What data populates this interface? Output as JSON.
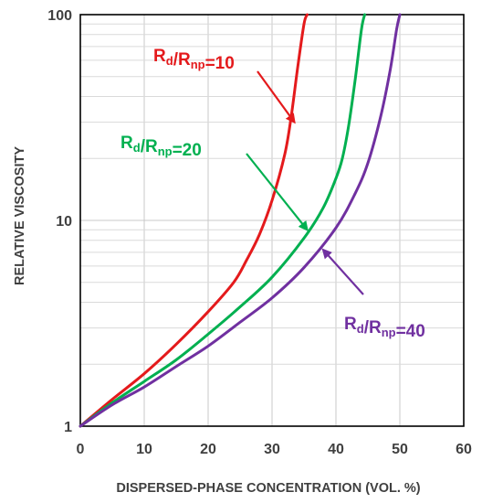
{
  "chart_data": {
    "type": "line",
    "title": "",
    "xlabel": "DISPERSED-PHASE  CONCENTRATION (VOL. %)",
    "ylabel": "RELATIVE VISCOSITY",
    "xlim": [
      0,
      60
    ],
    "ylim": [
      1,
      100
    ],
    "yscale": "log",
    "grid": {
      "x": "major",
      "y": "major+minor"
    },
    "x_ticks": [
      0,
      10,
      20,
      30,
      40,
      50,
      60
    ],
    "x_tick_labels": [
      "0",
      "10",
      "20",
      "30",
      "40",
      "50",
      "60"
    ],
    "y_ticks": [
      1,
      10,
      100
    ],
    "y_tick_labels": [
      "1",
      "10",
      "100"
    ],
    "series": [
      {
        "name": "Rd/Rnp=10",
        "label_main": "R",
        "label_sub1": "d",
        "label_mid": "/R",
        "label_sub2": "np",
        "label_tail": "=10",
        "color": "#e41a1c",
        "label_pos": "upper-left",
        "arrow_to": [
          33.5,
          30
        ],
        "x": [
          0,
          5,
          10,
          15,
          20,
          24,
          26,
          28,
          30,
          32,
          33,
          34,
          35,
          35.5
        ],
        "y": [
          1,
          1.35,
          1.8,
          2.5,
          3.6,
          5.0,
          6.4,
          8.5,
          12.5,
          21,
          32,
          55,
          90,
          100
        ]
      },
      {
        "name": "Rd/Rnp=20",
        "label_main": "R",
        "label_sub1": "d",
        "label_mid": "/R",
        "label_sub2": "np",
        "label_tail": "=20",
        "color": "#00b050",
        "label_pos": "middle-left",
        "arrow_to": [
          35.5,
          9
        ],
        "x": [
          0,
          5,
          10,
          15,
          20,
          25,
          30,
          35,
          38,
          40,
          41,
          42,
          43,
          44,
          44.5
        ],
        "y": [
          1,
          1.3,
          1.65,
          2.1,
          2.8,
          3.8,
          5.3,
          8.2,
          11.5,
          16,
          20,
          29,
          48,
          85,
          100
        ]
      },
      {
        "name": "Rd/Rnp=40",
        "label_main": "R",
        "label_sub1": "d",
        "label_mid": "/R",
        "label_sub2": "np",
        "label_tail": "=40",
        "color": "#7030a0",
        "label_pos": "lower-right",
        "arrow_to": [
          38,
          7.2
        ],
        "x": [
          0,
          5,
          10,
          15,
          20,
          25,
          30,
          35,
          40,
          43,
          45,
          47,
          48.5,
          49.5,
          50
        ],
        "y": [
          1,
          1.27,
          1.55,
          1.95,
          2.45,
          3.2,
          4.2,
          5.9,
          9.2,
          13.5,
          19,
          32,
          54,
          85,
          100
        ]
      }
    ]
  }
}
